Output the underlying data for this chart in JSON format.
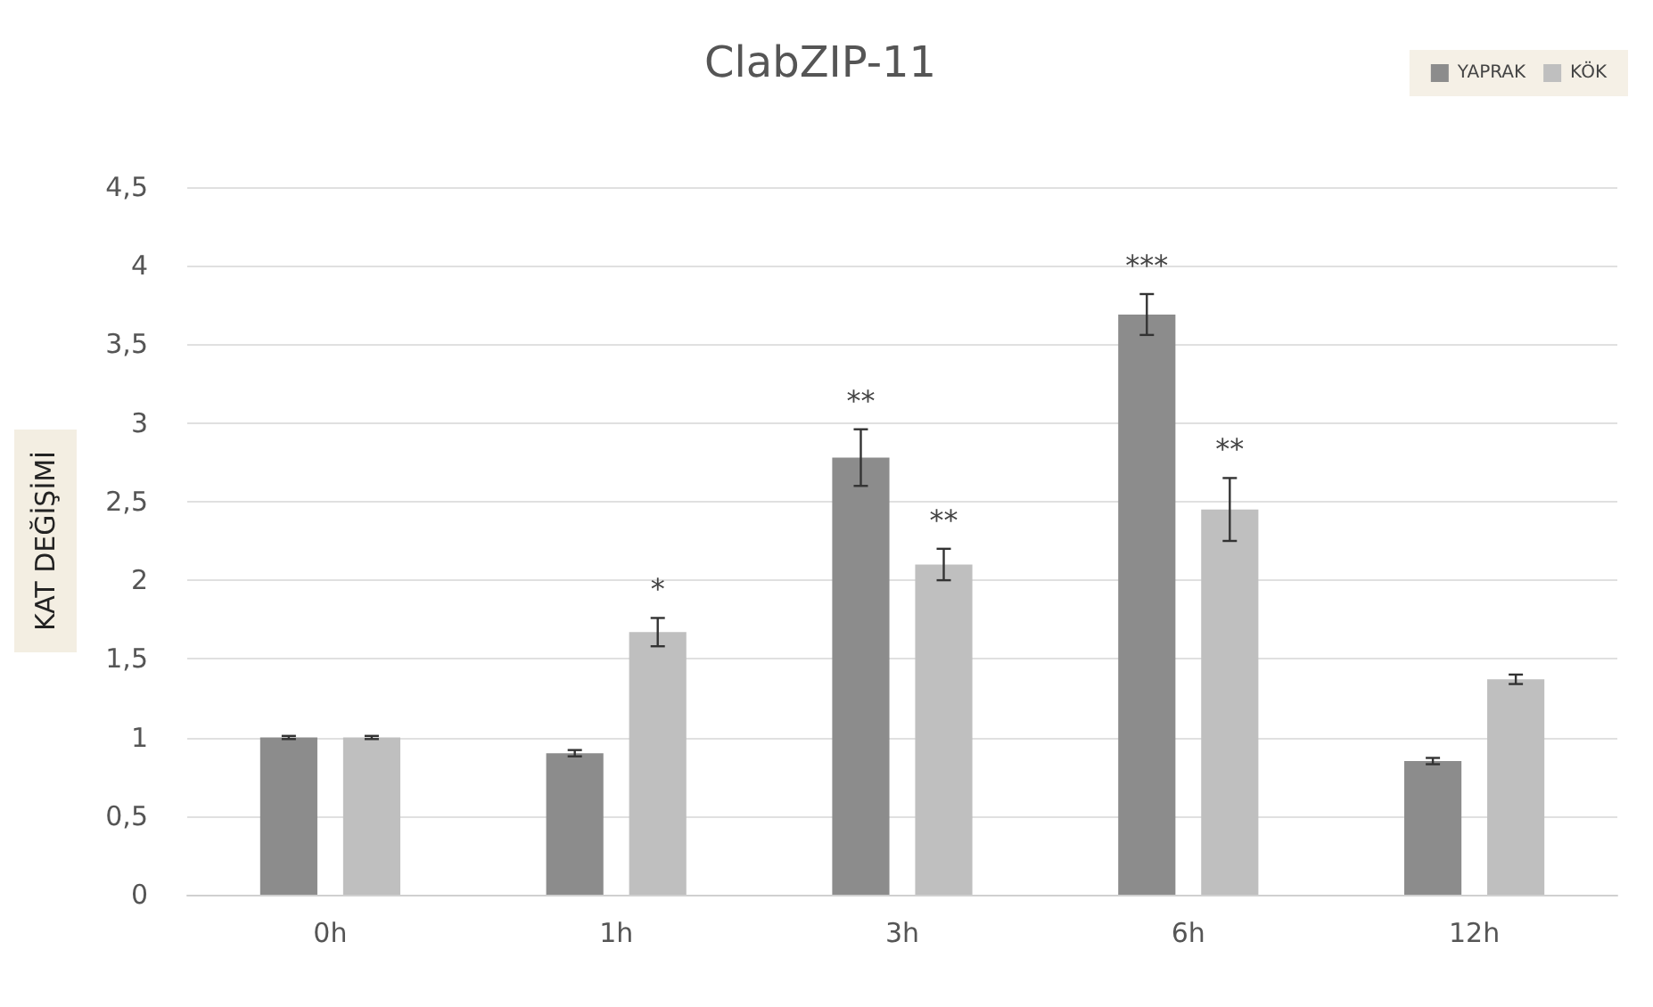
{
  "chart_data": {
    "type": "bar",
    "title": "ClabZIP-11",
    "ylabel": "KAT DEĞİŞİMİ",
    "categories": [
      "0h",
      "1h",
      "3h",
      "6h",
      "12h"
    ],
    "series": [
      {
        "name": "YAPRAK",
        "color": "#8c8c8c",
        "values": [
          1,
          0.9,
          2.78,
          3.69,
          0.85
        ],
        "errors": [
          0.01,
          0.02,
          0.18,
          0.13,
          0.02
        ],
        "value_labels": [
          null,
          null,
          "**",
          "***",
          null
        ]
      },
      {
        "name": "KÖK",
        "color": "#bfbfbf",
        "values": [
          1,
          1.67,
          2.1,
          2.45,
          1.37
        ],
        "errors": [
          0.01,
          0.09,
          0.1,
          0.2,
          0.03
        ],
        "value_labels": [
          null,
          "*",
          "**",
          "**",
          null
        ]
      }
    ],
    "ylim": [
      0,
      4.5
    ],
    "yticks": [
      0,
      {
        "value": 0.5,
        "label": "0,5"
      },
      1,
      {
        "value": 1.5,
        "label": "1,5"
      },
      2,
      {
        "value": 2.5,
        "label": "2,5"
      },
      3,
      {
        "value": 3.5,
        "label": "3,5"
      },
      4,
      {
        "value": 4.5,
        "label": "4,5"
      }
    ],
    "grid": "y",
    "legend": "top right"
  }
}
